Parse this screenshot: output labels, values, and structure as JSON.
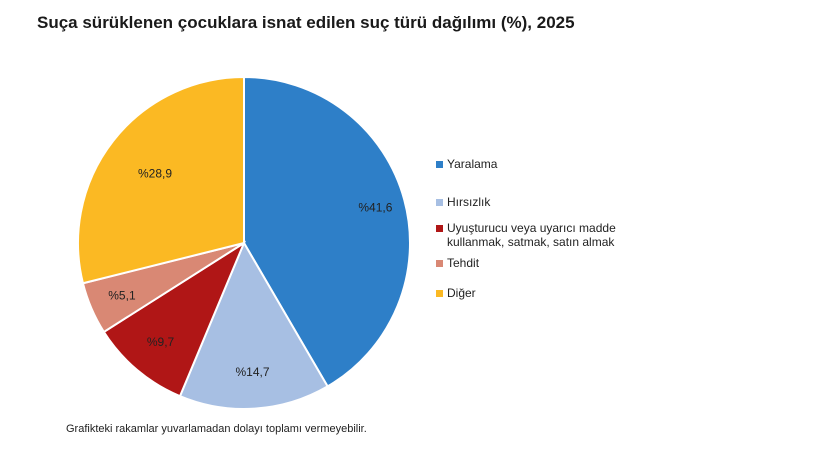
{
  "title": "Suça sürüklenen çocuklara isnat edilen suç türü dağılımı (%), 2025",
  "footnote": "Grafikteki rakamlar yuvarlamadan dolayı toplamı vermeyebilir.",
  "chart_data": {
    "type": "pie",
    "title": "Suça sürüklenen çocuklara isnat edilen suç türü dağılımı (%), 2025",
    "legend_position": "right",
    "slices": [
      {
        "name": "Yaralama",
        "value": 41.6,
        "label": "%41,6",
        "color": "#2e7fc8"
      },
      {
        "name": "Hırsızlık",
        "value": 14.7,
        "label": "%14,7",
        "color": "#a7bfe3"
      },
      {
        "name": "Uyuşturucu veya uyarıcı madde kullanmak, satmak, satın almak",
        "value": 9.7,
        "label": "%9,7",
        "color": "#b01616"
      },
      {
        "name": "Tehdit",
        "value": 5.1,
        "label": "%5,1",
        "color": "#d98874"
      },
      {
        "name": "Diğer",
        "value": 28.9,
        "label": "%28,9",
        "color": "#fbb923"
      }
    ]
  },
  "legend": [
    {
      "line1": "Yaralama",
      "line2": ""
    },
    {
      "line1": "Hırsızlık",
      "line2": ""
    },
    {
      "line1": "Uyuşturucu veya uyarıcı madde",
      "line2": "kullanmak, satmak, satın almak"
    },
    {
      "line1": "Tehdit",
      "line2": ""
    },
    {
      "line1": "Diğer",
      "line2": ""
    }
  ]
}
